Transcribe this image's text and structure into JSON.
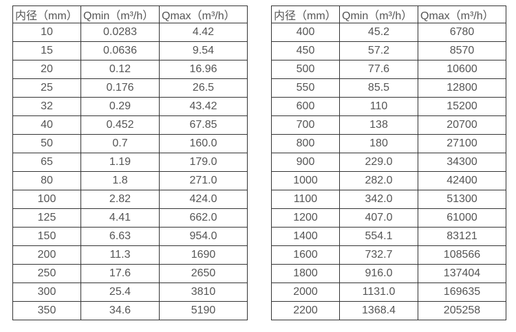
{
  "colors": {
    "border": "#333333",
    "text": "#555555",
    "background": "#ffffff"
  },
  "headers": {
    "diameter": "内径（mm）",
    "qmin": "Qmin（m³/h）",
    "qmax": "Qmax（m³/h）"
  },
  "left_table": {
    "title": "flow-range-table-small-diameters",
    "rows": [
      [
        "10",
        "0.0283",
        "4.42"
      ],
      [
        "15",
        "0.0636",
        "9.54"
      ],
      [
        "20",
        "0.12",
        "16.96"
      ],
      [
        "25",
        "0.176",
        "26.5"
      ],
      [
        "32",
        "0.29",
        "43.42"
      ],
      [
        "40",
        "0.452",
        "67.85"
      ],
      [
        "50",
        "0.7",
        "160.0"
      ],
      [
        "65",
        "1.19",
        "179.0"
      ],
      [
        "80",
        "1.8",
        "271.0"
      ],
      [
        "100",
        "2.82",
        "424.0"
      ],
      [
        "125",
        "4.41",
        "662.0"
      ],
      [
        "150",
        "6.63",
        "954.0"
      ],
      [
        "200",
        "11.3",
        "1690"
      ],
      [
        "250",
        "17.6",
        "2650"
      ],
      [
        "300",
        "25.4",
        "3810"
      ],
      [
        "350",
        "34.6",
        "5190"
      ]
    ]
  },
  "right_table": {
    "title": "flow-range-table-large-diameters",
    "rows": [
      [
        "400",
        "45.2",
        "6780"
      ],
      [
        "450",
        "57.2",
        "8570"
      ],
      [
        "500",
        "77.6",
        "10600"
      ],
      [
        "550",
        "85.5",
        "12800"
      ],
      [
        "600",
        "110",
        "15200"
      ],
      [
        "700",
        "138",
        "20700"
      ],
      [
        "800",
        "180",
        "27100"
      ],
      [
        "900",
        "229.0",
        "34300"
      ],
      [
        "1000",
        "282.0",
        "42400"
      ],
      [
        "1100",
        "342.0",
        "51300"
      ],
      [
        "1200",
        "407.0",
        "61000"
      ],
      [
        "1400",
        "554.1",
        "83121"
      ],
      [
        "1600",
        "732.7",
        "108566"
      ],
      [
        "1800",
        "916.0",
        "137404"
      ],
      [
        "2000",
        "1131.0",
        "169635"
      ],
      [
        "2200",
        "1368.4",
        "205258"
      ]
    ]
  }
}
